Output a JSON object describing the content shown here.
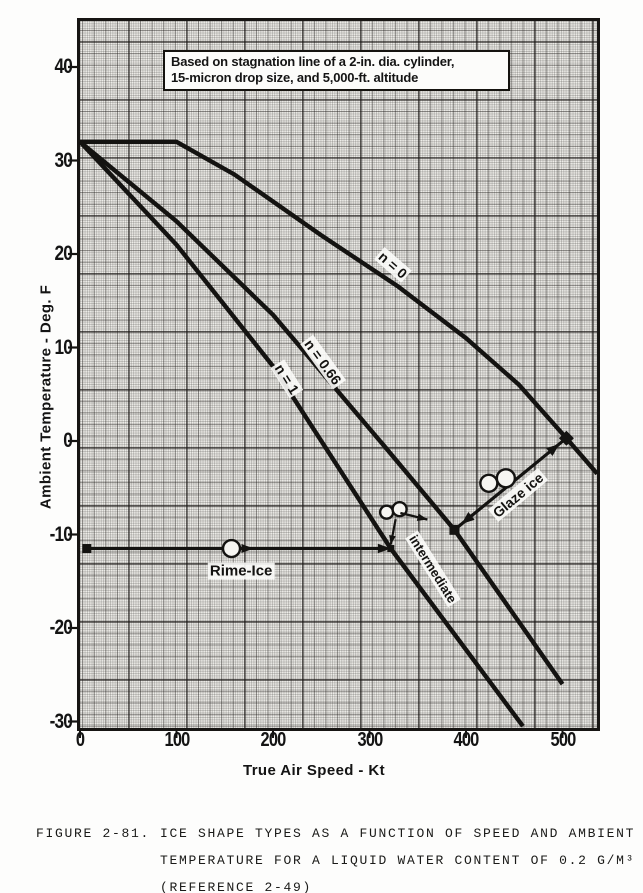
{
  "figure": {
    "caption": {
      "figure_label": "FIGURE 2-81.",
      "lines": [
        "ICE SHAPE TYPES AS A FUNCTION OF SPEED AND AMBIENT",
        "TEMPERATURE FOR A LIQUID WATER CONTENT OF 0.2 G/M³",
        "(REFERENCE 2-49)"
      ]
    }
  },
  "chart_data": {
    "type": "line",
    "note_lines": [
      "Based on stagnation line of a 2-in. dia. cylinder,",
      "15-micron drop size, and 5,000-ft. altitude"
    ],
    "xlabel": "True Air Speed - Kt",
    "ylabel": "Ambient Temperature - Deg. F",
    "xlim": [
      0,
      537
    ],
    "ylim": [
      -30.7,
      44.9
    ],
    "x_ticks": [
      0,
      100,
      200,
      300,
      400,
      500
    ],
    "y_ticks": [
      40,
      30,
      20,
      10,
      0,
      -10,
      -20,
      -30
    ],
    "grid": "fine engineering graph paper, majors every 3 Kt-squares",
    "series": [
      {
        "name": "n = 0",
        "points": [
          [
            0,
            32
          ],
          [
            100,
            32
          ],
          [
            160,
            28.5
          ],
          [
            250,
            22
          ],
          [
            330,
            16.5
          ],
          [
            400,
            11
          ],
          [
            455,
            6
          ],
          [
            504,
            0.3
          ],
          [
            536,
            -3.5
          ]
        ]
      },
      {
        "name": "n = 0.66",
        "points": [
          [
            0,
            32
          ],
          [
            100,
            23.5
          ],
          [
            200,
            13.5
          ],
          [
            315,
            -0.5
          ],
          [
            388,
            -9.5
          ],
          [
            500,
            -26
          ]
        ]
      },
      {
        "name": "n = 1",
        "points": [
          [
            0,
            32
          ],
          [
            100,
            21
          ],
          [
            200,
            8
          ],
          [
            322,
            -11.5
          ],
          [
            459,
            -30.5
          ]
        ]
      }
    ],
    "series_labels": [
      {
        "text": "n = 0",
        "kt": 324,
        "temp": 18.8,
        "angle": 41
      },
      {
        "text": "n = 0.66",
        "kt": 252,
        "temp": 8.4,
        "angle": 54
      },
      {
        "text": "n = 1",
        "kt": 214,
        "temp": 6.6,
        "angle": 58
      }
    ],
    "zones": {
      "rime": {
        "label": "Rime-Ice",
        "line_temp": -11.5,
        "line_from_kt": 6,
        "line_to_kt": 320,
        "glyph_kt": 157,
        "label_kt": 167,
        "label_temp": -13.9
      },
      "intermediate": {
        "label": "intermediate",
        "label_kt": 366,
        "label_temp": -13.7,
        "angle": 58,
        "arrow_from": [
          332,
          -7.7
        ],
        "arrow_to": [
          360,
          -8.4
        ],
        "glyph": [
          325,
          -7.4
        ]
      },
      "glaze": {
        "label": "Glaze ice",
        "label_kt": 454,
        "label_temp": -5.8,
        "angle": -40,
        "arrow_from": [
          388,
          -9.5
        ],
        "arrow_to": [
          504,
          0.3
        ],
        "glyph": [
          433,
          -4.2
        ]
      }
    }
  }
}
